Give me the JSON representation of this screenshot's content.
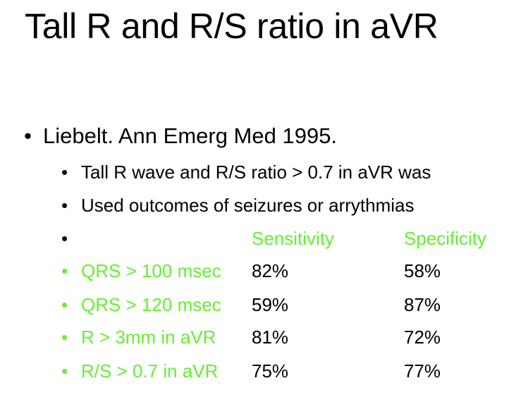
{
  "colors": {
    "accent": "#66ee33",
    "text": "#000000",
    "background": "#ffffff"
  },
  "slide": {
    "title": "Tall R and R/S ratio in aVR",
    "bullet": {
      "dot": "•",
      "text": "Liebelt.  Ann Emerg Med 1995."
    },
    "subbullets": [
      "Tall R wave and R/S ratio > 0.7 in aVR was",
      "Used outcomes of seizures or arrythmias"
    ],
    "table": {
      "headers": {
        "sensitivity": "Sensitivity",
        "specificity": "Specificity"
      },
      "rows": [
        {
          "criterion": "QRS > 100 msec",
          "sensitivity": "82%",
          "specificity": "58%"
        },
        {
          "criterion": "QRS > 120 msec",
          "sensitivity": "59%",
          "specificity": "87%"
        },
        {
          "criterion": "R > 3mm in aVR",
          "sensitivity": "81%",
          "specificity": "72%"
        },
        {
          "criterion": "R/S > 0.7 in aVR",
          "sensitivity": "75%",
          "specificity": "77%"
        }
      ]
    }
  }
}
